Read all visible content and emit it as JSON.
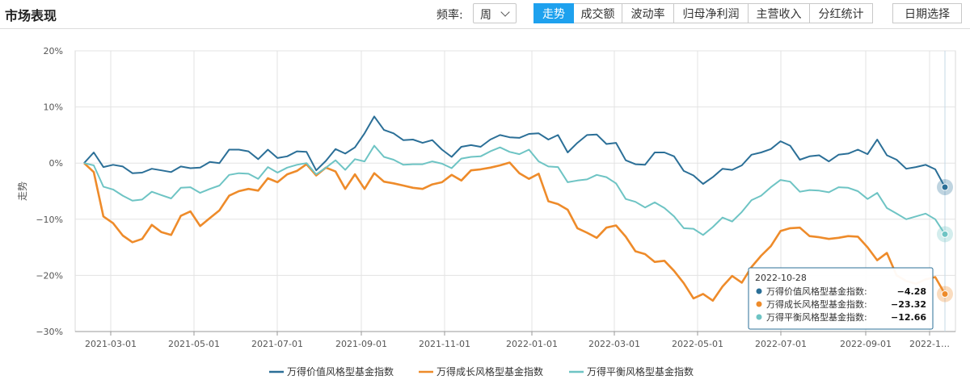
{
  "header": {
    "title": "市场表现",
    "frequency_label": "频率:",
    "frequency_value": "周",
    "tabs": [
      {
        "label": "走势",
        "active": true
      },
      {
        "label": "成交额",
        "active": false
      },
      {
        "label": "波动率",
        "active": false
      },
      {
        "label": "归母净利润",
        "active": false
      },
      {
        "label": "主营收入",
        "active": false
      },
      {
        "label": "分红统计",
        "active": false
      }
    ],
    "date_button": "日期选择"
  },
  "colors": {
    "accent": "#1ea1ee",
    "series1": "#2b6f97",
    "series2": "#ee8b2a",
    "series3": "#6ec4c4"
  },
  "chart_data": {
    "type": "line",
    "ylabel": "走势",
    "ylim": [
      -30,
      20
    ],
    "yticks": [
      "20%",
      "10%",
      "0%",
      "−10%",
      "−20%",
      "−30%"
    ],
    "xticks": [
      "2021-03-01",
      "2021-05-01",
      "2021-07-01",
      "2021-09-01",
      "2021-11-01",
      "2022-01-01",
      "2022-03-01",
      "2022-05-01",
      "2022-07-01",
      "2022-09-01",
      "2022-1…"
    ],
    "grid": true,
    "legend_position": "bottom",
    "x_start": "2021-01-01",
    "x_step": "1 week",
    "series": [
      {
        "name": "万得价值风格型基金指数",
        "color": "#2b6f97",
        "values": [
          0,
          1.9,
          -0.7,
          -0.3,
          -0.6,
          -1.8,
          -1.7,
          -1.0,
          -1.3,
          -1.6,
          -0.6,
          -0.9,
          -0.8,
          0.2,
          0.0,
          2.4,
          2.4,
          2.1,
          0.7,
          2.4,
          0.9,
          1.2,
          2.1,
          2.0,
          -1.3,
          0.4,
          2.5,
          1.7,
          2.8,
          5.3,
          8.3,
          5.9,
          5.3,
          4.1,
          4.2,
          3.6,
          4.1,
          2.4,
          1.1,
          2.9,
          3.2,
          2.9,
          4.2,
          5.0,
          4.6,
          4.5,
          5.2,
          5.3,
          4.2,
          5.0,
          1.9,
          3.6,
          5.0,
          5.1,
          3.4,
          3.6,
          0.5,
          -0.2,
          -0.3,
          1.9,
          1.9,
          1.2,
          -1.4,
          -2.2,
          -3.7,
          -2.5,
          -1.0,
          -1.2,
          -0.4,
          1.5,
          1.9,
          2.5,
          3.9,
          3.1,
          0.6,
          1.2,
          1.4,
          0.3,
          1.5,
          1.7,
          2.4,
          1.6,
          4.2,
          1.4,
          0.6,
          -1.0,
          -0.7,
          -0.3,
          -1.1,
          -4.28
        ]
      },
      {
        "name": "万得成长风格型基金指数",
        "color": "#ee8b2a",
        "values": [
          0,
          -1.6,
          -9.5,
          -10.7,
          -12.9,
          -14.1,
          -13.5,
          -11.0,
          -12.3,
          -12.8,
          -9.4,
          -8.6,
          -11.2,
          -9.8,
          -8.4,
          -5.8,
          -5.0,
          -4.6,
          -4.9,
          -2.7,
          -3.4,
          -2.0,
          -1.4,
          -0.2,
          -2.2,
          -0.8,
          -1.5,
          -4.6,
          -2.0,
          -4.6,
          -1.8,
          -3.3,
          -3.6,
          -4.0,
          -4.4,
          -4.6,
          -3.8,
          -3.4,
          -2.1,
          -3.1,
          -1.3,
          -1.1,
          -0.8,
          -0.4,
          0.1,
          -1.8,
          -2.8,
          -1.9,
          -6.8,
          -7.3,
          -8.3,
          -11.6,
          -12.4,
          -13.3,
          -11.5,
          -11.1,
          -13.1,
          -15.7,
          -16.2,
          -17.6,
          -17.4,
          -19.2,
          -21.4,
          -24.1,
          -23.3,
          -24.5,
          -22.0,
          -20.1,
          -21.3,
          -18.5,
          -16.5,
          -14.8,
          -12.1,
          -11.6,
          -11.5,
          -13.0,
          -13.2,
          -13.5,
          -13.3,
          -13.0,
          -13.1,
          -15.0,
          -17.3,
          -16.0,
          -20.0,
          -21.0,
          -21.5,
          -20.7,
          -20.3,
          -23.32
        ]
      },
      {
        "name": "万得平衡风格型基金指数",
        "color": "#6ec4c4",
        "values": [
          0,
          -0.4,
          -4.2,
          -4.7,
          -5.8,
          -6.7,
          -6.5,
          -5.1,
          -5.7,
          -6.3,
          -4.4,
          -4.3,
          -5.3,
          -4.6,
          -4.0,
          -2.1,
          -1.8,
          -1.9,
          -2.8,
          -0.7,
          -1.7,
          -0.8,
          -0.3,
          0.0,
          -2.0,
          -0.8,
          0.5,
          -1.2,
          0.7,
          0.3,
          3.1,
          1.1,
          0.6,
          -0.3,
          -0.2,
          -0.2,
          0.3,
          -0.1,
          -0.9,
          0.8,
          1.1,
          1.2,
          2.1,
          2.8,
          2.0,
          1.6,
          2.4,
          0.3,
          -0.6,
          -0.7,
          -3.4,
          -3.1,
          -2.9,
          -2.1,
          -2.5,
          -3.6,
          -6.4,
          -6.9,
          -7.9,
          -7.0,
          -8.0,
          -9.5,
          -11.6,
          -11.7,
          -12.8,
          -11.4,
          -9.7,
          -10.4,
          -8.7,
          -6.6,
          -5.8,
          -4.3,
          -3.0,
          -3.3,
          -5.1,
          -4.8,
          -4.9,
          -5.2,
          -4.3,
          -4.4,
          -5.0,
          -6.4,
          -5.3,
          -8.0,
          -9.0,
          -10.0,
          -9.5,
          -9.0,
          -10.0,
          -12.66
        ]
      }
    ],
    "tooltip": {
      "date": "2022-10-28",
      "items": [
        {
          "label": "万得价值风格型基金指数: ",
          "value": "−4.28",
          "color": "#2b6f97"
        },
        {
          "label": "万得成长风格型基金指数: ",
          "value": "−23.32",
          "color": "#ee8b2a"
        },
        {
          "label": "万得平衡风格型基金指数: ",
          "value": "−12.66",
          "color": "#6ec4c4"
        }
      ]
    }
  }
}
